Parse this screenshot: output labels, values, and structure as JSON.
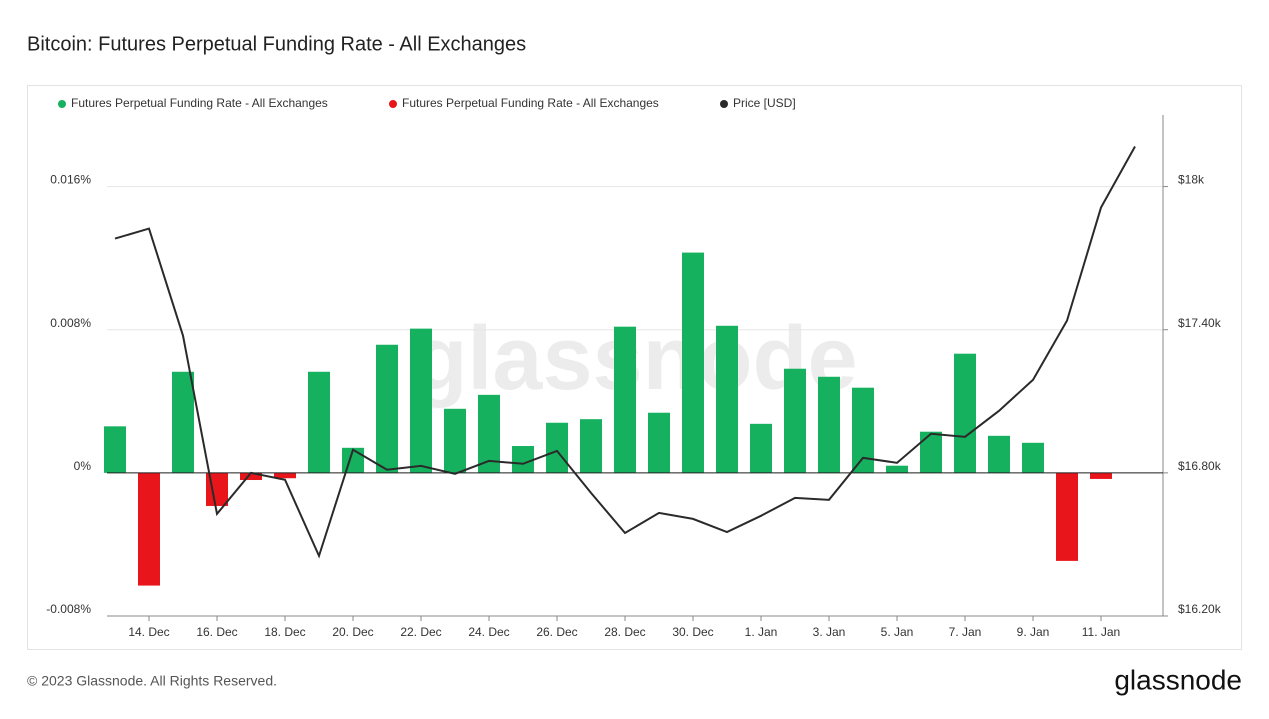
{
  "chart_data": {
    "type": "bar",
    "title": "Bitcoin: Futures Perpetual Funding Rate - All Exchanges",
    "watermark": "glassnode",
    "categories": [
      null,
      "14. Dec",
      null,
      "16. Dec",
      null,
      "18. Dec",
      null,
      "20. Dec",
      null,
      "22. Dec",
      null,
      "24. Dec",
      null,
      "26. Dec",
      null,
      "28. Dec",
      null,
      "30. Dec",
      null,
      "1. Jan",
      null,
      "3. Jan",
      null,
      "5. Jan",
      null,
      "7. Jan",
      null,
      "9. Jan",
      null,
      "11. Jan",
      null
    ],
    "series": [
      {
        "name": "Futures Perpetual Funding Rate - All Exchanges",
        "type": "bar",
        "color": "#16b15f",
        "values": [
          0.0026,
          null,
          0.00565,
          null,
          null,
          null,
          0.00565,
          0.0014,
          0.00716,
          0.00806,
          0.00358,
          0.00436,
          0.0015,
          0.0028,
          0.003,
          0.00817,
          0.00336,
          0.01231,
          0.00822,
          0.00274,
          0.00582,
          0.00537,
          0.00476,
          0.0004,
          0.0023,
          0.00666,
          0.00207,
          0.00168,
          null,
          null,
          null
        ]
      },
      {
        "name": "Futures Perpetual Funding Rate - All Exchanges",
        "type": "bar",
        "color": "#e8161a",
        "values": [
          null,
          -0.0063,
          null,
          -0.00185,
          -0.0004,
          -0.0003,
          null,
          null,
          null,
          null,
          null,
          null,
          null,
          null,
          null,
          null,
          null,
          null,
          null,
          null,
          null,
          null,
          null,
          null,
          null,
          null,
          null,
          null,
          -0.00492,
          -0.00034,
          null
        ]
      },
      {
        "name": "Price [USD]",
        "type": "line",
        "axis": "y2",
        "color": "#2a2a2a",
        "values": [
          17782,
          17824,
          17375,
          16628,
          16800,
          16771,
          16452,
          16897,
          16813,
          16829,
          16796,
          16850,
          16838,
          16892,
          16716,
          16548,
          16632,
          16607,
          16552,
          16620,
          16695,
          16687,
          16863,
          16842,
          16964,
          16951,
          17060,
          17190,
          17438,
          17912,
          18168
        ]
      }
    ],
    "ylim": [
      -0.008,
      0.02
    ],
    "yticks": [
      {
        "value": -0.008,
        "label": "-0.008%"
      },
      {
        "value": 0,
        "label": "0%"
      },
      {
        "value": 0.008,
        "label": "0.008%"
      },
      {
        "value": 0.016,
        "label": "0.016%"
      }
    ],
    "y2lim": [
      16200,
      18300
    ],
    "y2ticks": [
      {
        "value": 16200,
        "label": "$16.20k"
      },
      {
        "value": 16800,
        "label": "$16.80k"
      },
      {
        "value": 17400,
        "label": "$17.40k"
      },
      {
        "value": 18000,
        "label": "$18k"
      }
    ],
    "grid": true,
    "legend": "top-left"
  },
  "footer": {
    "copyright": "© 2023 Glassnode. All Rights Reserved.",
    "logo": "glassnode"
  }
}
